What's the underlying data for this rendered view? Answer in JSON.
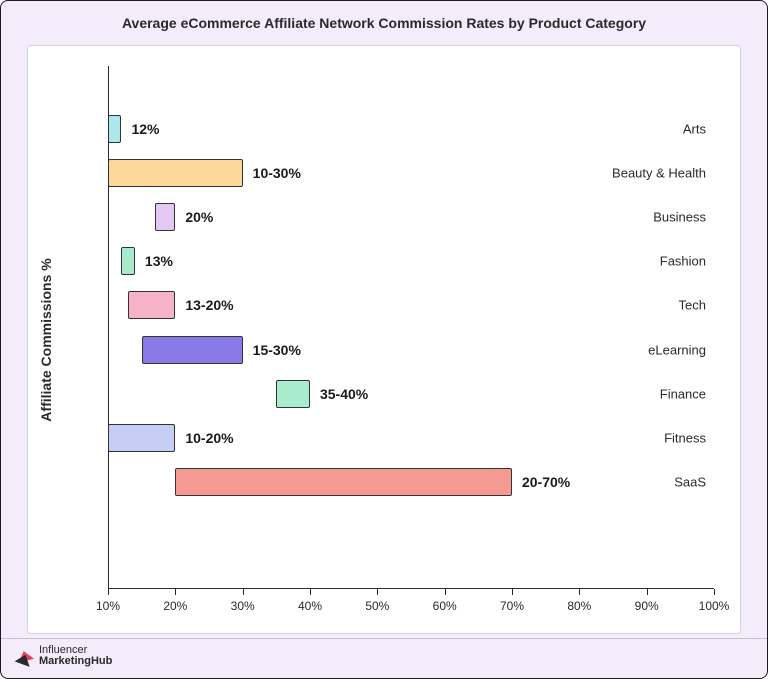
{
  "title": "Average eCommerce Affiliate Network Commission Rates by Product Category",
  "ylabel": "Affiliate Commissions %",
  "chart": {
    "type": "bar-range-horizontal",
    "xmin": 10,
    "xmax": 100,
    "xtick_step": 10,
    "xtick_suffix": "%",
    "background_color": "#ffffff",
    "outer_background_color": "#f4ecfb",
    "axis_color": "#2a2a2a",
    "bar_border_color": "#333333",
    "series": [
      {
        "category": "Arts",
        "start": 10,
        "end": 12,
        "label": "12%",
        "fill": "#aee6ee"
      },
      {
        "category": "Beauty & Health",
        "start": 10,
        "end": 30,
        "label": "10-30%",
        "fill": "#fbd79a"
      },
      {
        "category": "Business",
        "start": 17,
        "end": 20,
        "label": "20%",
        "fill": "#e2c8f2"
      },
      {
        "category": "Fashion",
        "start": 12,
        "end": 14,
        "label": "13%",
        "fill": "#a9eccd"
      },
      {
        "category": "Tech",
        "start": 13,
        "end": 20,
        "label": "13-20%",
        "fill": "#f6b2c6"
      },
      {
        "category": "eLearning",
        "start": 15,
        "end": 30,
        "label": "15-30%",
        "fill": "#8a7ae8"
      },
      {
        "category": "Finance",
        "start": 35,
        "end": 40,
        "label": "35-40%",
        "fill": "#a9eccd"
      },
      {
        "category": "Fitness",
        "start": 10,
        "end": 20,
        "label": "10-20%",
        "fill": "#c5cdf4"
      },
      {
        "category": "SaaS",
        "start": 20,
        "end": 70,
        "label": "20-70%",
        "fill": "#f49a93"
      }
    ]
  },
  "footer": {
    "logo_line1": "Influencer",
    "logo_line2": "MarketingHub"
  },
  "typography": {
    "title_fontsize": 14,
    "title_weight": 700,
    "axis_label_fontsize": 12,
    "category_fontsize": 13,
    "bar_label_fontsize": 14,
    "bar_label_weight": 700
  }
}
